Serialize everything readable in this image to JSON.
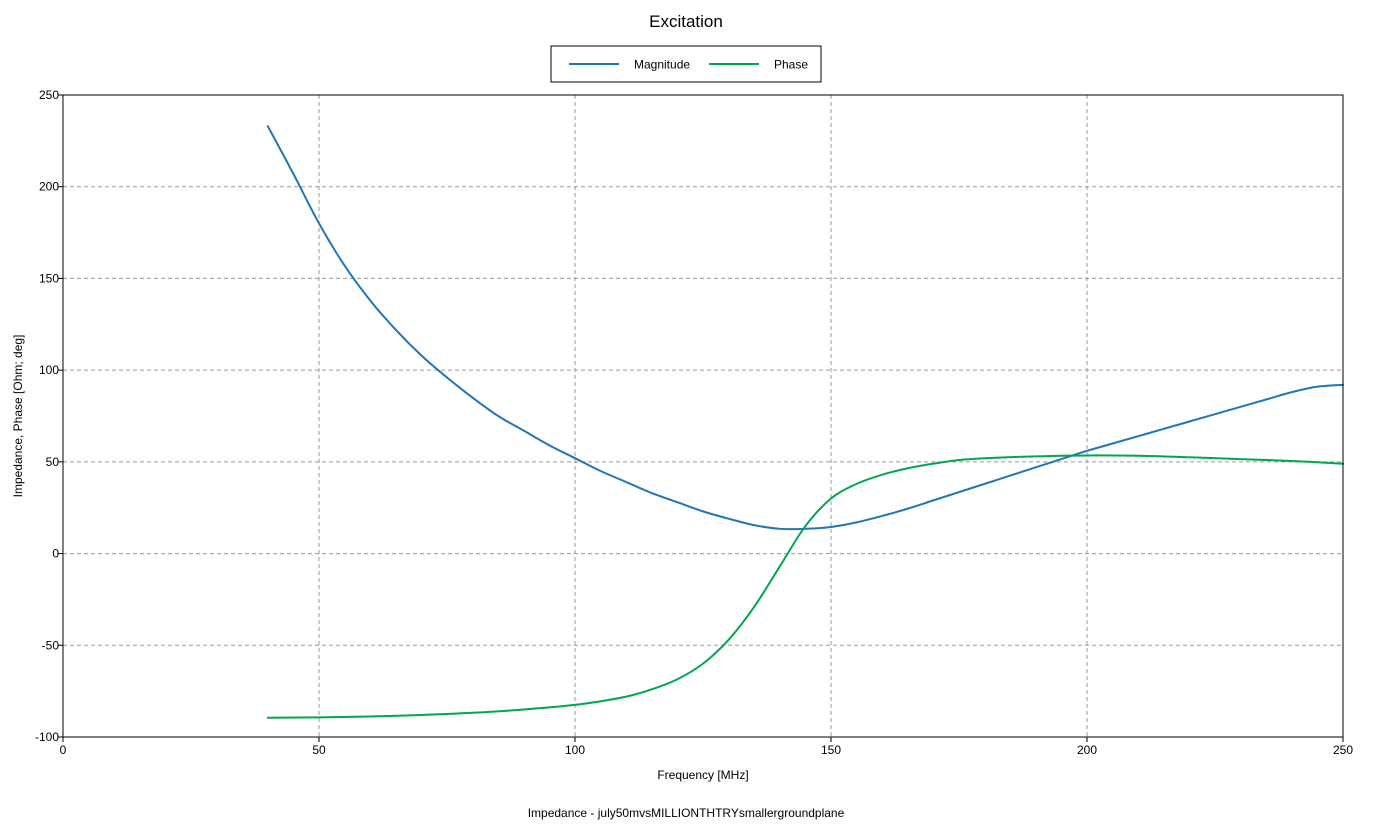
{
  "chart_data": {
    "type": "line",
    "title": "Excitation",
    "xlabel": "Frequency [MHz]",
    "ylabel": "Impedance, Phase [Ohm; deg]",
    "footer": "Impedance - july50mvsMILLIONTHTRYsmallergroundplane",
    "xlim": [
      0,
      250
    ],
    "ylim": [
      -100,
      250
    ],
    "xticks": [
      0,
      50,
      100,
      150,
      200,
      250
    ],
    "yticks": [
      -100,
      -50,
      0,
      50,
      100,
      150,
      200,
      250
    ],
    "grid": true,
    "legend_position": "top-center",
    "series": [
      {
        "name": "Magnitude",
        "color": "#1f77b4",
        "x": [
          40,
          45,
          50,
          55,
          60,
          65,
          70,
          75,
          80,
          85,
          90,
          95,
          100,
          105,
          110,
          115,
          120,
          125,
          130,
          135,
          140,
          145,
          150,
          155,
          160,
          165,
          170,
          175,
          180,
          185,
          190,
          195,
          200,
          205,
          210,
          215,
          220,
          225,
          230,
          235,
          240,
          245,
          250
        ],
        "y": [
          233,
          207,
          180,
          157,
          138,
          122,
          108,
          96,
          85,
          75,
          67,
          59,
          52,
          45,
          39,
          33,
          28,
          23,
          19,
          15.5,
          13.5,
          13.5,
          14.5,
          17,
          20.5,
          24.5,
          29,
          33.5,
          38,
          42.5,
          47,
          51.5,
          56,
          60,
          64,
          68,
          72,
          76,
          80,
          84,
          88,
          91,
          92
        ]
      },
      {
        "name": "Phase",
        "color": "#00a651",
        "x": [
          40,
          50,
          60,
          70,
          80,
          90,
          100,
          105,
          110,
          115,
          120,
          125,
          130,
          135,
          140,
          145,
          150,
          155,
          160,
          165,
          170,
          175,
          180,
          190,
          200,
          210,
          220,
          230,
          240,
          250
        ],
        "y": [
          -89.5,
          -89.3,
          -88.8,
          -88,
          -86.8,
          -85,
          -82.5,
          -80.5,
          -78,
          -74,
          -68.5,
          -60,
          -47,
          -29,
          -7,
          15,
          30,
          38,
          43,
          46.5,
          49,
          51,
          52,
          53,
          53.5,
          53.3,
          52.5,
          51.5,
          50.5,
          49
        ]
      }
    ]
  }
}
